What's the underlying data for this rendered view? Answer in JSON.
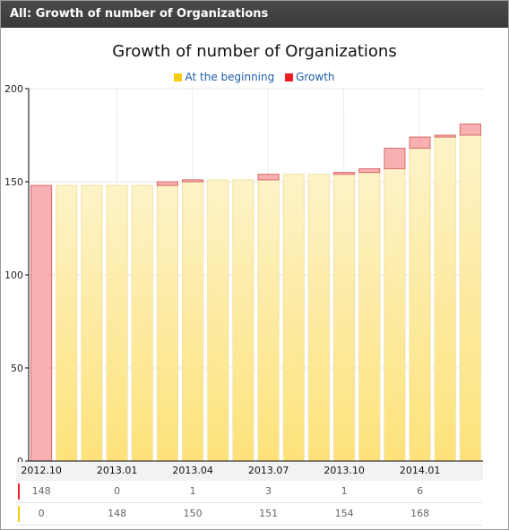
{
  "panel": {
    "title": "All: Growth of number of Organizations"
  },
  "colors": {
    "beginning": "#f5cc10",
    "growth": "#ee1c25",
    "beginning_bar_top": "#fdf3c8",
    "beginning_bar_bottom": "#fde27a",
    "growth_bar": "#f59595"
  },
  "chart_data": {
    "type": "bar",
    "stacked": true,
    "title": "Growth of number of Organizations",
    "ylim": [
      0,
      200
    ],
    "yticks": [
      0,
      50,
      100,
      150,
      200
    ],
    "grid": true,
    "legend_position": "top-center",
    "categories": [
      "2012.10",
      "2012.11",
      "2012.12",
      "2013.01",
      "2013.02",
      "2013.03",
      "2013.04",
      "2013.05",
      "2013.06",
      "2013.07",
      "2013.08",
      "2013.09",
      "2013.10",
      "2013.11",
      "2013.12",
      "2014.01",
      "2014.02",
      "2014.03"
    ],
    "tick_labels": [
      {
        "index": 0,
        "label": "2012.10"
      },
      {
        "index": 3,
        "label": "2013.01"
      },
      {
        "index": 6,
        "label": "2013.04"
      },
      {
        "index": 9,
        "label": "2013.07"
      },
      {
        "index": 12,
        "label": "2013.10"
      },
      {
        "index": 15,
        "label": "2014.01"
      }
    ],
    "series": [
      {
        "name": "At the beginning",
        "values": [
          0,
          148,
          148,
          148,
          148,
          148,
          150,
          151,
          151,
          151,
          154,
          154,
          154,
          155,
          157,
          168,
          174,
          175
        ]
      },
      {
        "name": "Growth",
        "values": [
          148,
          0,
          0,
          0,
          0,
          2,
          1,
          0,
          0,
          3,
          0,
          0,
          1,
          2,
          11,
          6,
          1,
          6
        ]
      }
    ]
  },
  "data_table": {
    "rows": [
      {
        "series": "Growth",
        "cells": [
          {
            "index": 0,
            "value": "148"
          },
          {
            "index": 3,
            "value": "0"
          },
          {
            "index": 6,
            "value": "1"
          },
          {
            "index": 9,
            "value": "3"
          },
          {
            "index": 12,
            "value": "1"
          },
          {
            "index": 15,
            "value": "6"
          }
        ]
      },
      {
        "series": "At the beginning",
        "cells": [
          {
            "index": 0,
            "value": "0"
          },
          {
            "index": 3,
            "value": "148"
          },
          {
            "index": 6,
            "value": "150"
          },
          {
            "index": 9,
            "value": "151"
          },
          {
            "index": 12,
            "value": "154"
          },
          {
            "index": 15,
            "value": "168"
          }
        ]
      }
    ]
  }
}
